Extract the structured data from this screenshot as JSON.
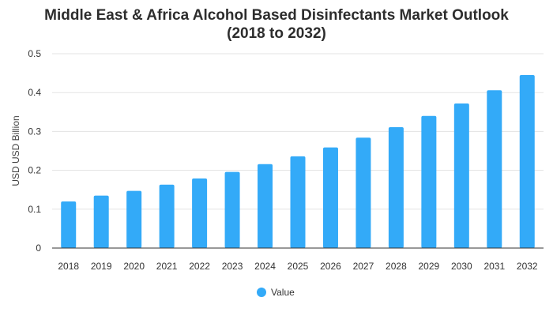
{
  "chart_data": {
    "type": "bar",
    "title_line1": "Middle East & Africa Alcohol Based Disinfectants Market Outlook",
    "title_line2": "(2018 to 2032)",
    "xlabel": "",
    "ylabel": "USD USD Billion",
    "ylim": [
      0,
      0.5
    ],
    "yticks": [
      "0",
      "0.1",
      "0.2",
      "0.3",
      "0.4",
      "0.5"
    ],
    "grid": true,
    "legend_position": "bottom-center",
    "categories": [
      "2018",
      "2019",
      "2020",
      "2021",
      "2022",
      "2023",
      "2024",
      "2025",
      "2026",
      "2027",
      "2028",
      "2029",
      "2030",
      "2031",
      "2032"
    ],
    "series": [
      {
        "name": "Value",
        "color": "#33aaf8",
        "values": [
          0.12,
          0.135,
          0.147,
          0.163,
          0.179,
          0.196,
          0.216,
          0.236,
          0.259,
          0.284,
          0.311,
          0.34,
          0.372,
          0.406,
          0.445
        ]
      }
    ]
  }
}
